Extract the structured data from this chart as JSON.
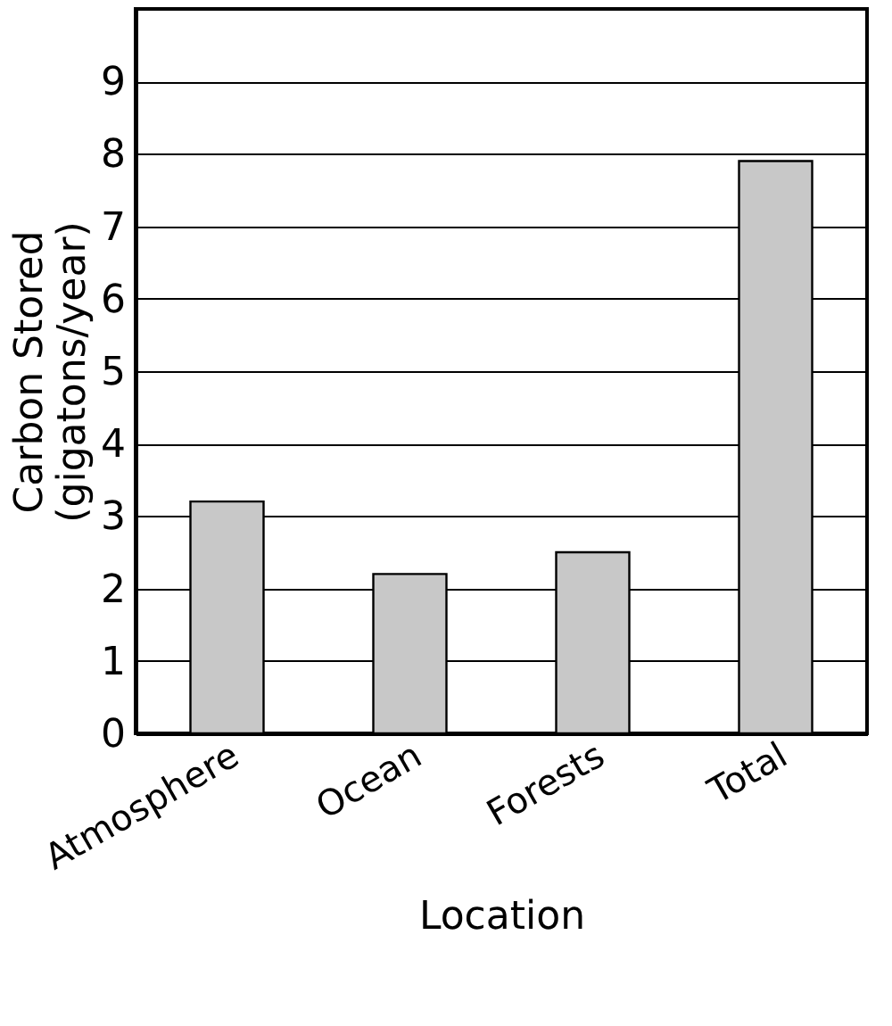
{
  "chart_data": {
    "type": "bar",
    "xlabel": "Location",
    "ylabel": "Carbon Stored\n(gigatons/year)",
    "categories": [
      "Atmosphere",
      "Ocean",
      "Forests",
      "Total"
    ],
    "values": [
      3.2,
      2.2,
      2.5,
      7.9
    ],
    "color": "#c8c8c8",
    "ylim": [
      0,
      10
    ],
    "yticks": [
      0,
      1,
      2,
      3,
      4,
      5,
      6,
      7,
      8,
      9
    ],
    "grid": "y"
  }
}
